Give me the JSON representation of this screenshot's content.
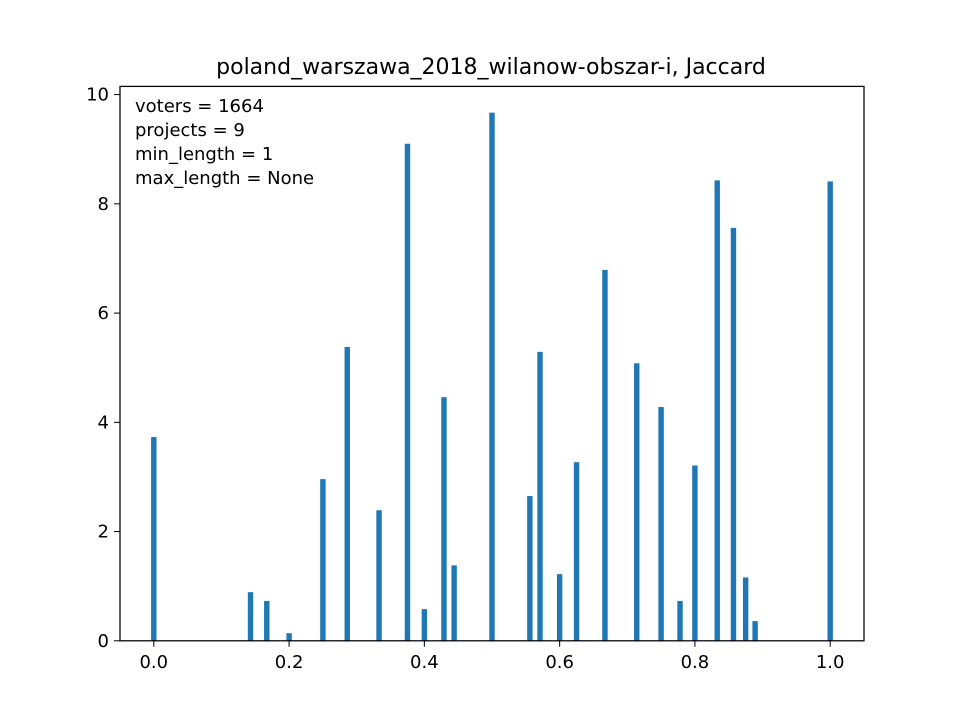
{
  "chart_data": {
    "type": "bar",
    "title": "poland_warszawa_2018_wilanow-obszar-i, Jaccard",
    "xlabel": "",
    "ylabel": "",
    "xlim": [
      -0.05,
      1.05
    ],
    "ylim": [
      0,
      10.15
    ],
    "xticks": [
      0.0,
      0.2,
      0.4,
      0.6,
      0.8,
      1.0
    ],
    "xtick_labels": [
      "0.0",
      "0.2",
      "0.4",
      "0.6",
      "0.8",
      "1.0"
    ],
    "yticks": [
      0,
      2,
      4,
      6,
      8,
      10
    ],
    "ytick_labels": [
      "0",
      "2",
      "4",
      "6",
      "8",
      "10"
    ],
    "bin_width": 0.01,
    "grid": false,
    "legend": false,
    "bar_color": "#1f77b4",
    "annotations": [
      "voters = 1664",
      "projects = 9",
      "min_length = 1",
      "max_length = None"
    ],
    "bars": [
      {
        "x": 0.0,
        "value": 3.73
      },
      {
        "x": 0.143,
        "value": 0.89
      },
      {
        "x": 0.167,
        "value": 0.73
      },
      {
        "x": 0.2,
        "value": 0.14
      },
      {
        "x": 0.25,
        "value": 2.96
      },
      {
        "x": 0.286,
        "value": 5.38
      },
      {
        "x": 0.333,
        "value": 2.39
      },
      {
        "x": 0.375,
        "value": 9.1
      },
      {
        "x": 0.4,
        "value": 0.58
      },
      {
        "x": 0.429,
        "value": 4.46
      },
      {
        "x": 0.444,
        "value": 1.38
      },
      {
        "x": 0.5,
        "value": 9.67
      },
      {
        "x": 0.556,
        "value": 2.65
      },
      {
        "x": 0.571,
        "value": 5.29
      },
      {
        "x": 0.6,
        "value": 1.22
      },
      {
        "x": 0.625,
        "value": 3.27
      },
      {
        "x": 0.667,
        "value": 6.79
      },
      {
        "x": 0.714,
        "value": 5.08
      },
      {
        "x": 0.75,
        "value": 4.28
      },
      {
        "x": 0.778,
        "value": 0.73
      },
      {
        "x": 0.8,
        "value": 3.21
      },
      {
        "x": 0.833,
        "value": 8.43
      },
      {
        "x": 0.857,
        "value": 7.56
      },
      {
        "x": 0.875,
        "value": 1.16
      },
      {
        "x": 0.889,
        "value": 0.36
      },
      {
        "x": 1.0,
        "value": 8.41
      }
    ]
  }
}
